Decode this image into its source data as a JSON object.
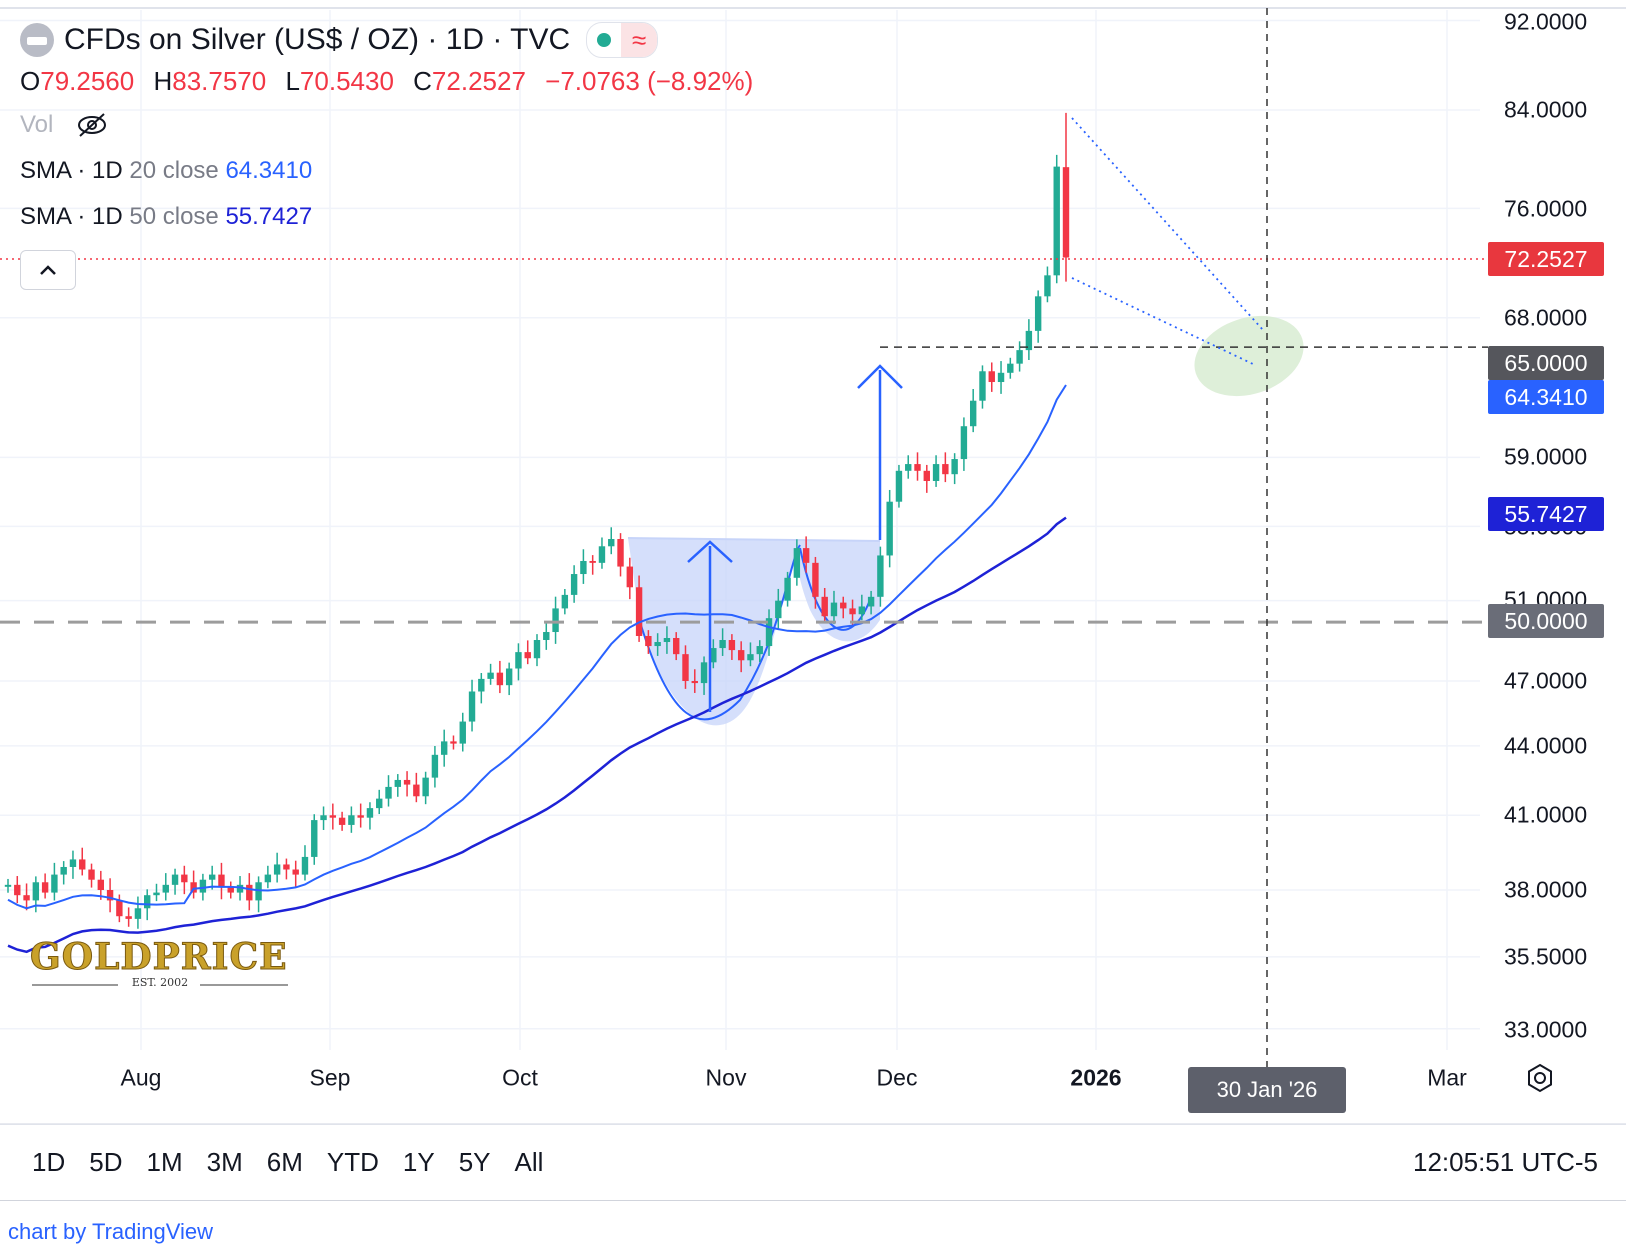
{
  "header": {
    "title": "CFDs on Silver (US$ / OZ) · 1D · TVC",
    "ohlc": [
      {
        "k": "O",
        "v": "79.2560"
      },
      {
        "k": "H",
        "v": "83.7570"
      },
      {
        "k": "L",
        "v": "70.5430"
      },
      {
        "k": "C",
        "v": "72.2527"
      }
    ],
    "change": "−7.0763 (−8.92%)",
    "vol_label": "Vol",
    "sma20": {
      "label": "SMA · 1D",
      "params": "20 close",
      "value": "64.3410",
      "color": "#2962ff"
    },
    "sma50": {
      "label": "SMA · 1D",
      "params": "50 close",
      "value": "55.7427",
      "color": "#1e22d6"
    },
    "collapse_icon": "chevron-up-icon",
    "eye_icon": "eye-off-icon"
  },
  "price_tags": {
    "last": "72.2527",
    "level_65": "65.0000",
    "sma20": "64.3410",
    "sma50": "55.7427",
    "level_50": "50.0000"
  },
  "date_tag": "30 Jan '26",
  "time_ranges": [
    "1D",
    "5D",
    "1M",
    "3M",
    "6M",
    "YTD",
    "1Y",
    "5Y",
    "All"
  ],
  "clock": "12:05:51 UTC-5",
  "footer_link": "chart by TradingView",
  "watermark": {
    "brand": "GOLDPRICE",
    "est": "EST. 2002"
  },
  "colors": {
    "up": "#22ab94",
    "down": "#f23645",
    "sma20": "#2962ff",
    "sma50": "#1e22d6",
    "pattern_fill": "#c7d4f9",
    "target_ellipse": "#d6ebcf",
    "dashed_level": "#9c9c9c"
  },
  "chart_data": {
    "type": "candlestick",
    "title": "CFDs on Silver (US$ / OZ) · 1D · TVC",
    "y_scale": "log",
    "y_ticks": [
      "92.0000",
      "84.0000",
      "76.0000",
      "68.0000",
      "59.0000",
      "55.0000",
      "51.0000",
      "47.0000",
      "44.0000",
      "41.0000",
      "38.0000",
      "35.5000",
      "33.0000"
    ],
    "x_ticks": [
      "Aug",
      "Sep",
      "Oct",
      "Nov",
      "Dec",
      "2026",
      "Mar"
    ],
    "candles_close_approx": [
      38.2,
      37.8,
      37.6,
      38.3,
      37.9,
      38.6,
      38.9,
      39.2,
      38.8,
      38.4,
      38.0,
      37.6,
      37.0,
      36.9,
      37.3,
      37.8,
      37.9,
      38.2,
      38.6,
      38.3,
      37.9,
      38.4,
      38.6,
      38.1,
      37.9,
      38.2,
      37.6,
      38.3,
      38.6,
      39.0,
      38.8,
      38.6,
      39.3,
      40.8,
      41.0,
      40.9,
      40.6,
      41.0,
      40.9,
      41.3,
      41.7,
      42.2,
      42.5,
      42.3,
      41.8,
      42.6,
      43.6,
      44.2,
      44.1,
      45.1,
      46.5,
      47.1,
      47.4,
      46.8,
      47.6,
      48.4,
      48.1,
      49.0,
      49.4,
      50.6,
      51.3,
      52.4,
      53.1,
      53.0,
      53.9,
      54.3,
      52.8,
      51.7,
      49.2,
      48.7,
      48.9,
      49.1,
      48.3,
      47.0,
      46.9,
      47.9,
      48.6,
      49.0,
      48.5,
      48.0,
      48.3,
      48.7,
      50.1,
      51.0,
      52.2,
      53.8,
      53.0,
      51.2,
      50.2,
      50.9,
      50.6,
      50.3,
      50.7,
      51.2,
      53.4,
      56.4,
      58.2,
      58.6,
      58.2,
      57.6,
      58.6,
      58.0,
      58.9,
      60.9,
      62.5,
      64.4,
      63.7,
      64.3,
      64.9,
      65.8,
      67.1,
      69.5,
      71.0,
      79.3,
      72.3
    ],
    "last": {
      "open": 79.256,
      "high": 83.757,
      "low": 70.543,
      "close": 72.2527,
      "change": -7.0763,
      "change_pct": -8.92
    },
    "series": [
      {
        "name": "SMA · 1D 20 close",
        "last": 64.341
      },
      {
        "name": "SMA · 1D 50 close",
        "last": 55.7427
      }
    ],
    "levels": [
      65.0,
      50.0
    ],
    "annotations": [
      "cup-and-handle pattern",
      "breakout target arrow",
      "target ellipse near 65 on 30 Jan '26"
    ]
  }
}
